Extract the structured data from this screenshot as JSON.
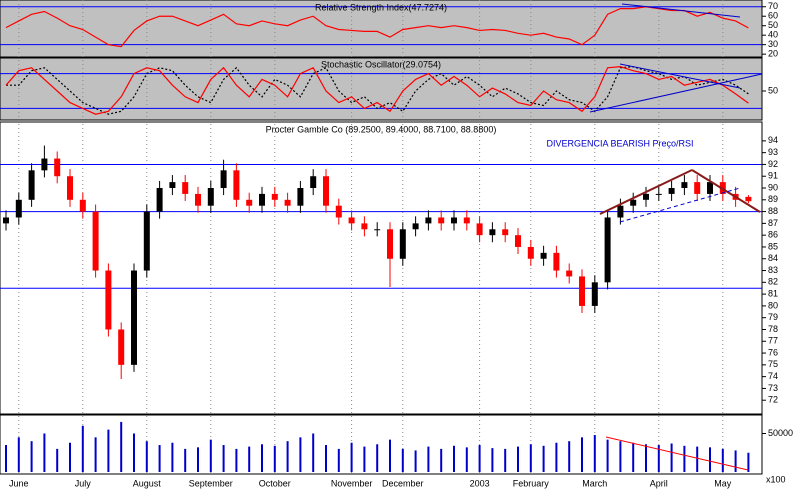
{
  "chart_data": [
    {
      "type": "line",
      "title": "Relative Strength Index(47.7274)",
      "color": "#ff0000",
      "ylim": [
        17,
        75
      ],
      "yticks": [
        20,
        30,
        40,
        50,
        60,
        70
      ],
      "hlines": [
        70,
        30
      ],
      "values": [
        48,
        55,
        62,
        65,
        58,
        50,
        46,
        38,
        30,
        28,
        45,
        55,
        60,
        60,
        55,
        50,
        56,
        62,
        52,
        50,
        55,
        52,
        50,
        56,
        60,
        50,
        46,
        45,
        44,
        44,
        38,
        46,
        48,
        50,
        48,
        50,
        48,
        45,
        46,
        45,
        42,
        40,
        42,
        38,
        36,
        30,
        40,
        62,
        68,
        68,
        70,
        68,
        66,
        66,
        60,
        64,
        58,
        55,
        47.73
      ]
    },
    {
      "type": "line",
      "title": "Stochastic Oscillator(29.0754)",
      "color": "#ff0000",
      "signal_color": "#000000",
      "ylim": [
        0,
        100
      ],
      "yticks": [
        50
      ],
      "hlines": [
        80,
        20
      ],
      "values": [
        60,
        85,
        90,
        70,
        50,
        30,
        20,
        10,
        15,
        40,
        80,
        90,
        85,
        60,
        40,
        30,
        70,
        90,
        60,
        40,
        70,
        60,
        40,
        80,
        90,
        50,
        30,
        40,
        20,
        30,
        15,
        50,
        70,
        80,
        60,
        75,
        60,
        40,
        55,
        45,
        30,
        25,
        50,
        35,
        30,
        15,
        40,
        90,
        92,
        85,
        80,
        70,
        75,
        60,
        65,
        70,
        60,
        45,
        29.08
      ],
      "signal": [
        60,
        60,
        85,
        90,
        70,
        50,
        30,
        20,
        10,
        15,
        40,
        80,
        90,
        85,
        60,
        40,
        30,
        70,
        90,
        60,
        40,
        70,
        60,
        40,
        80,
        90,
        50,
        30,
        40,
        20,
        30,
        15,
        50,
        70,
        80,
        60,
        75,
        60,
        40,
        55,
        45,
        30,
        25,
        50,
        35,
        30,
        15,
        40,
        90,
        92,
        85,
        80,
        70,
        75,
        60,
        65,
        70,
        60,
        45
      ]
    },
    {
      "type": "candlestick",
      "title": "Procter   Gamble Co (89.2500, 89.4000, 88.7100, 88.8800)",
      "annotation": "DIVERGENCIA BEARISH Preço/RSI",
      "up_color": "#000000",
      "down_color": "#ff0000",
      "ylim": [
        71,
        95.6
      ],
      "yticks": [
        72,
        73,
        74,
        75,
        76,
        77,
        78,
        79,
        80,
        81,
        82,
        83,
        84,
        85,
        86,
        87,
        88,
        89,
        90,
        91,
        92,
        93,
        94
      ],
      "hlines": [
        92,
        88,
        81.5
      ],
      "open": [
        87,
        87.5,
        89,
        91.5,
        92.5,
        91,
        89,
        88,
        83,
        78,
        75,
        83,
        88,
        90,
        90.5,
        89.5,
        88.5,
        90,
        91.5,
        89,
        88.5,
        89.5,
        89,
        88.5,
        90,
        91,
        88.5,
        87.5,
        87,
        86.5,
        86.5,
        84,
        86.5,
        87,
        87.5,
        87,
        87.5,
        87,
        86,
        86.5,
        86,
        85,
        84,
        84.5,
        83,
        82.5,
        80,
        82,
        87.5,
        88.5,
        89,
        89.5,
        89.5,
        90,
        90.5,
        89.5,
        90.5,
        89.5,
        89.25
      ],
      "high": [
        88.1,
        89.6,
        92.1,
        93.6,
        93.1,
        91.6,
        89.6,
        88.6,
        83.6,
        78.6,
        83.6,
        88.6,
        90.6,
        91.1,
        91.1,
        90.1,
        90.6,
        92.4,
        92.1,
        89.6,
        90.1,
        90.1,
        89.6,
        90.6,
        91.6,
        91.6,
        89.1,
        88.1,
        87.6,
        87.1,
        87.1,
        87.1,
        87.6,
        88.1,
        88.1,
        88.1,
        88.1,
        87.6,
        87.1,
        87.1,
        86.6,
        85.6,
        85.1,
        85.1,
        83.6,
        83.1,
        82.6,
        88.1,
        89.1,
        89.6,
        90.1,
        90.1,
        90.6,
        91.1,
        91.1,
        91.1,
        91.1,
        90.1,
        89.4
      ],
      "low": [
        86.4,
        86.9,
        88.4,
        90.9,
        90.4,
        88.4,
        87.4,
        82.4,
        77.4,
        73.8,
        74.4,
        82.4,
        87.4,
        89.4,
        88.9,
        87.9,
        87.9,
        89.4,
        88.4,
        87.9,
        87.9,
        88.4,
        87.9,
        87.9,
        89.4,
        87.9,
        86.9,
        86.4,
        85.9,
        85.9,
        81.6,
        83.4,
        85.9,
        86.4,
        86.4,
        86.4,
        86.4,
        85.4,
        85.4,
        85.4,
        84.4,
        83.4,
        83.4,
        82.4,
        81.9,
        79.4,
        79.4,
        81.4,
        86.9,
        87.9,
        88.4,
        88.9,
        88.9,
        89.4,
        88.9,
        88.9,
        88.9,
        88.4,
        88.71
      ],
      "close": [
        87.5,
        89,
        91.5,
        92.5,
        91,
        89,
        88,
        83,
        78,
        75,
        83,
        88,
        90,
        90.5,
        89.5,
        88.5,
        90,
        91.5,
        89,
        88.5,
        89.5,
        89,
        88.5,
        90,
        91,
        88.5,
        87.5,
        87,
        86.5,
        86.5,
        84,
        86.5,
        87,
        87.5,
        87,
        87.5,
        87,
        86,
        86.5,
        86,
        85,
        84,
        84.5,
        83,
        82.5,
        80,
        82,
        87.5,
        88.5,
        89,
        89.5,
        89.5,
        90,
        90.5,
        89.5,
        90.5,
        89.5,
        89,
        88.88
      ]
    },
    {
      "type": "bar",
      "color": "#0000cc",
      "ylim": [
        0,
        74000
      ],
      "yticks": [
        50000
      ],
      "unit_label": "x100",
      "grid": true,
      "categories": [
        null,
        "June",
        null,
        null,
        null,
        null,
        "July",
        null,
        null,
        null,
        null,
        "August",
        null,
        null,
        null,
        null,
        "September",
        null,
        null,
        null,
        null,
        "October",
        null,
        null,
        null,
        null,
        null,
        "November",
        null,
        null,
        null,
        "December",
        null,
        null,
        null,
        null,
        null,
        "2003",
        null,
        null,
        null,
        "February",
        null,
        null,
        null,
        null,
        "March",
        null,
        null,
        null,
        null,
        "April",
        null,
        null,
        null,
        null,
        "May",
        null,
        null
      ],
      "values": [
        35000,
        45000,
        40000,
        50000,
        30000,
        38000,
        60000,
        45000,
        55000,
        65000,
        50000,
        40000,
        35000,
        38000,
        30000,
        32000,
        42000,
        35000,
        30000,
        33000,
        36000,
        34000,
        40000,
        45000,
        50000,
        35000,
        30000,
        38000,
        33000,
        36000,
        42000,
        30000,
        28000,
        33000,
        30000,
        34000,
        32000,
        35000,
        31000,
        30000,
        33000,
        36000,
        34000,
        38000,
        40000,
        45000,
        48000,
        42000,
        40000,
        38000,
        36000,
        35000,
        37000,
        34000,
        33000,
        32000,
        30000,
        28000,
        25000
      ]
    }
  ]
}
